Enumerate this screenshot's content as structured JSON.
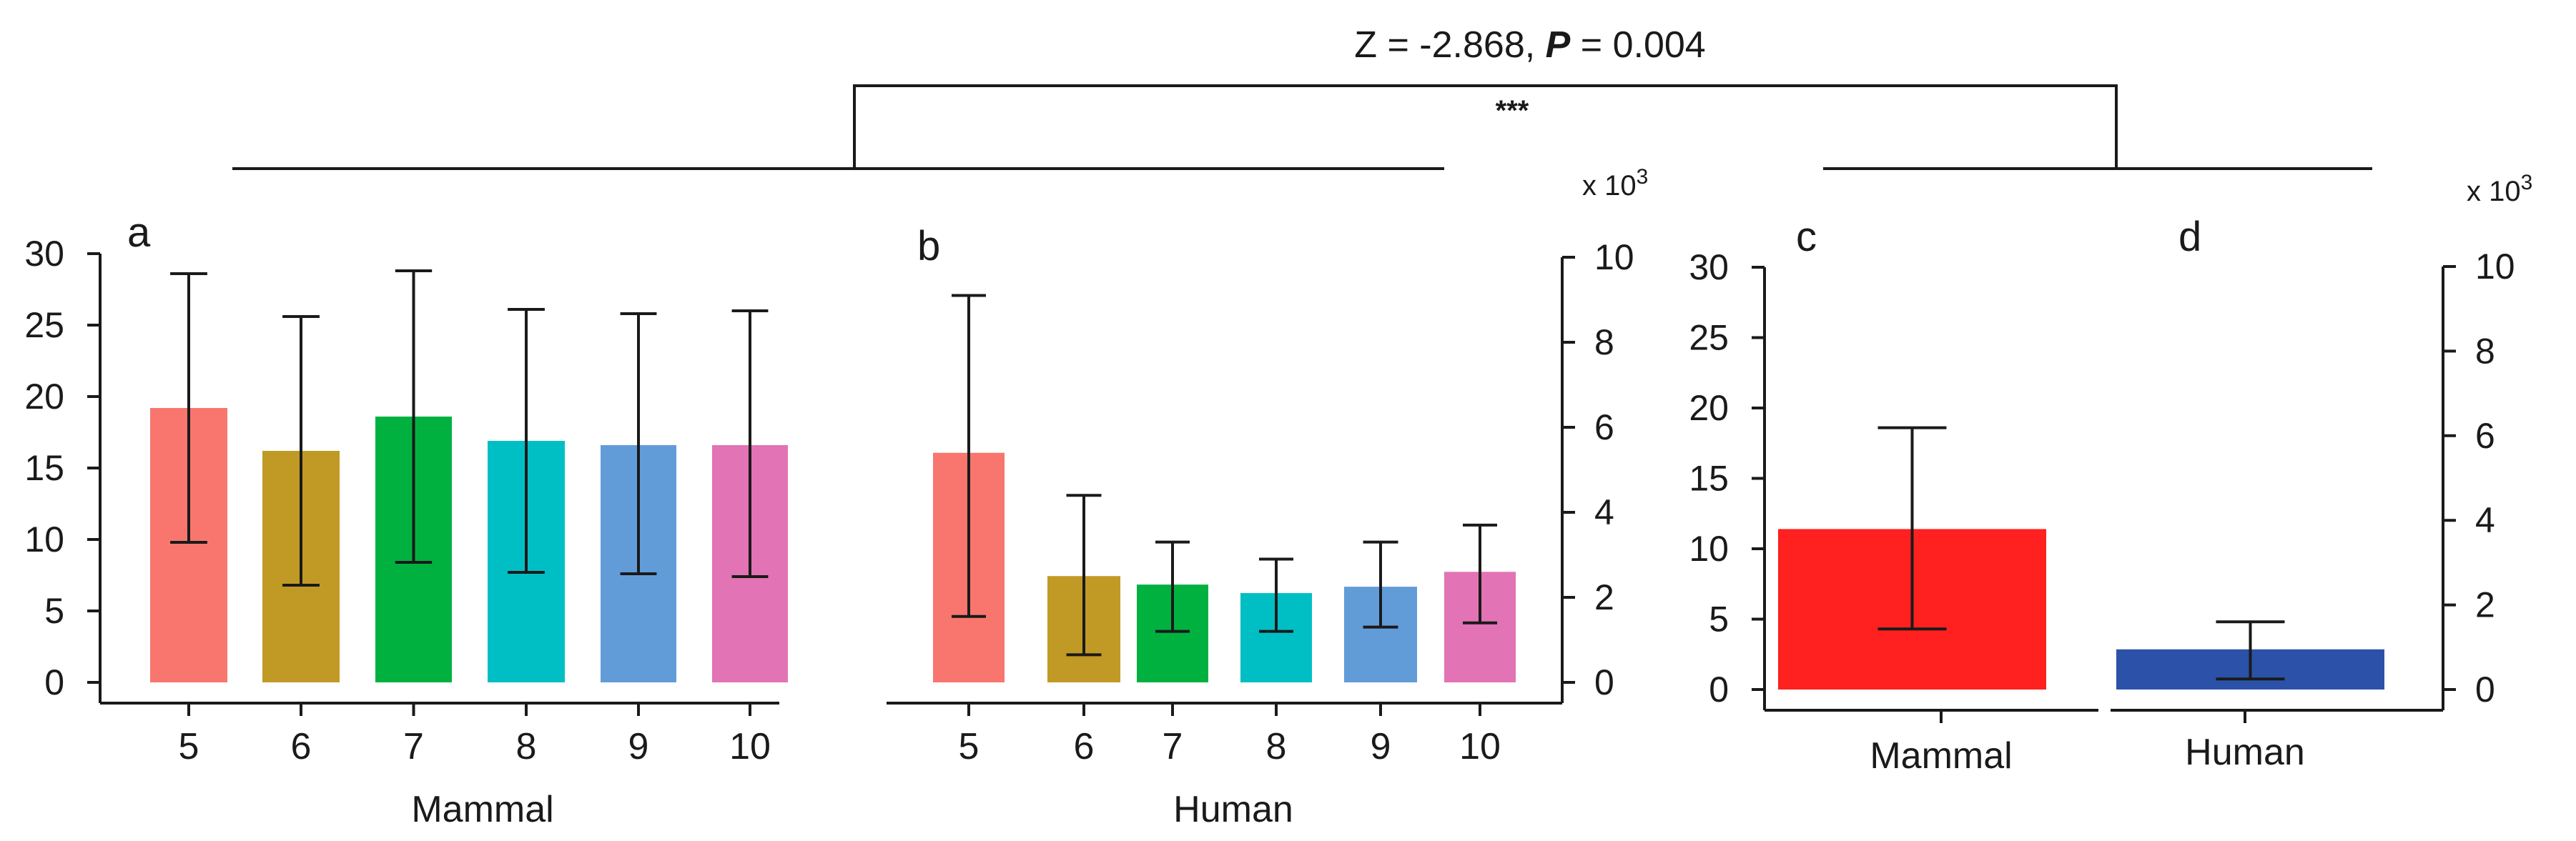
{
  "stat_test": {
    "z_text": "Z = -2.868, ",
    "p_label": "P",
    "p_text": " = 0.004",
    "significance": "***"
  },
  "colors": {
    "axis": "#1a1a1a",
    "category_5": "#F8766D",
    "category_6": "#C19A25",
    "category_7": "#00B140",
    "category_8": "#00BFC4",
    "category_9": "#619CD9",
    "category_10": "#E273B4",
    "mammal_total": "#FF2020",
    "human_total": "#2B52A8"
  },
  "chart_data": [
    {
      "id": "a",
      "panel_label": "a",
      "type": "bar",
      "xlabel": "Mammal",
      "categories": [
        "5",
        "6",
        "7",
        "8",
        "9",
        "10"
      ],
      "values": [
        19.2,
        16.2,
        18.6,
        16.9,
        16.6,
        16.6
      ],
      "error_low": [
        9.8,
        6.8,
        8.4,
        7.7,
        7.6,
        7.4
      ],
      "error_high": [
        28.6,
        25.6,
        28.8,
        26.1,
        25.8,
        26.0
      ],
      "colors": [
        "#F8766D",
        "#C19A25",
        "#00B140",
        "#00BFC4",
        "#619CD9",
        "#E273B4"
      ],
      "ylim": [
        0,
        30
      ],
      "y_ticks": [
        0,
        5,
        10,
        15,
        20,
        25,
        30
      ],
      "y_axis_side": "left",
      "y_scale_label": ""
    },
    {
      "id": "b",
      "panel_label": "b",
      "type": "bar",
      "xlabel": "Human",
      "categories": [
        "5",
        "6",
        "7",
        "8",
        "9",
        "10"
      ],
      "values": [
        5.4,
        2.5,
        2.3,
        2.1,
        2.25,
        2.6
      ],
      "error_low": [
        1.55,
        0.65,
        1.2,
        1.2,
        1.3,
        1.4
      ],
      "error_high": [
        9.1,
        4.4,
        3.3,
        2.9,
        3.3,
        3.7
      ],
      "colors": [
        "#F8766D",
        "#C19A25",
        "#00B140",
        "#00BFC4",
        "#619CD9",
        "#E273B4"
      ],
      "ylim": [
        0,
        10
      ],
      "y_ticks": [
        0,
        2,
        4,
        6,
        8,
        10
      ],
      "y_axis_side": "right",
      "y_scale_label": "x 10",
      "y_scale_exp": "3"
    },
    {
      "id": "c",
      "panel_label": "c",
      "type": "bar",
      "xlabel": "",
      "categories": [
        "Mammal"
      ],
      "values": [
        11.4
      ],
      "error_low": [
        4.3
      ],
      "error_high": [
        18.6
      ],
      "colors": [
        "#FF2020"
      ],
      "ylim": [
        0,
        30
      ],
      "y_ticks": [
        0,
        5,
        10,
        15,
        20,
        25,
        30
      ],
      "y_axis_side": "left",
      "y_scale_label": ""
    },
    {
      "id": "d",
      "panel_label": "d",
      "type": "bar",
      "xlabel": "",
      "categories": [
        "Human"
      ],
      "values": [
        0.95
      ],
      "error_low": [
        0.25
      ],
      "error_high": [
        1.6
      ],
      "colors": [
        "#2B52A8"
      ],
      "ylim": [
        0,
        10
      ],
      "y_ticks": [
        0,
        2,
        4,
        6,
        8,
        10
      ],
      "y_axis_side": "right",
      "y_scale_label": "x 10",
      "y_scale_exp": "3"
    }
  ]
}
